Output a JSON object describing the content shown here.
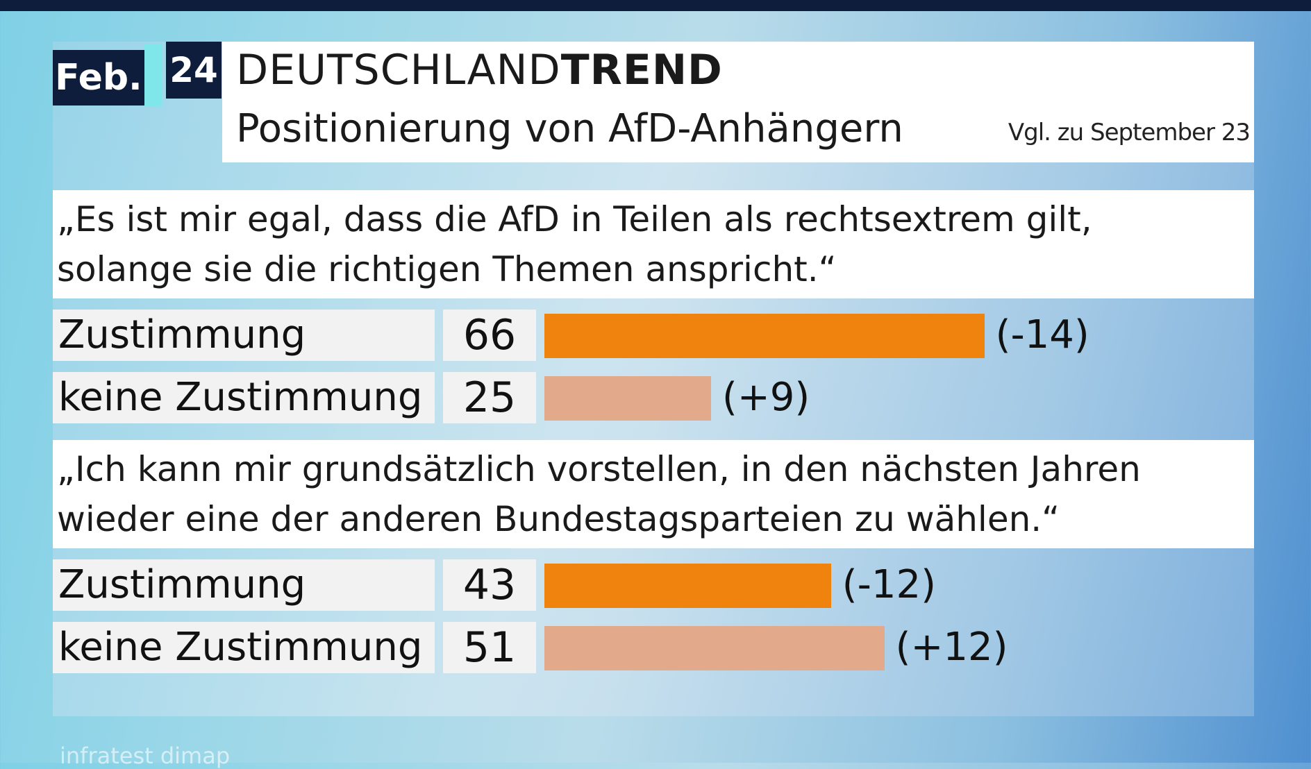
{
  "header": {
    "month": "Feb.",
    "year": "24",
    "brand_light": "DEUTSCHLAND",
    "brand_bold": "TREND",
    "subtitle": "Positionierung von AfD-Anhängern",
    "comparison_note": "Vgl. zu September 23"
  },
  "chart_data": {
    "type": "bar",
    "orientation": "horizontal",
    "title": "Positionierung von AfD-Anhängern",
    "value_range": [
      0,
      100
    ],
    "groups": [
      {
        "question": "„Es ist mir egal, dass die AfD in Teilen als rechtsextrem gilt,\nsolange sie die richtigen Themen anspricht.“",
        "rows": [
          {
            "label": "Zustimmung",
            "value": 66,
            "value_text": "66",
            "change": "(-14)",
            "kind": "agree"
          },
          {
            "label": "keine Zustimmung",
            "value": 25,
            "value_text": "25",
            "change": "(+9)",
            "kind": "disagree"
          }
        ]
      },
      {
        "question": "„Ich kann mir grundsätzlich vorstellen, in den nächsten Jahren\nwieder eine der anderen Bundestagsparteien zu wählen.“",
        "rows": [
          {
            "label": "Zustimmung",
            "value": 43,
            "value_text": "43",
            "change": "(-12)",
            "kind": "agree"
          },
          {
            "label": "keine Zustimmung",
            "value": 51,
            "value_text": "51",
            "change": "(+12)",
            "kind": "disagree"
          }
        ]
      }
    ],
    "colors": {
      "agree": "#f0820e",
      "disagree": "#e3a98b"
    }
  },
  "source": "infratest dimap"
}
